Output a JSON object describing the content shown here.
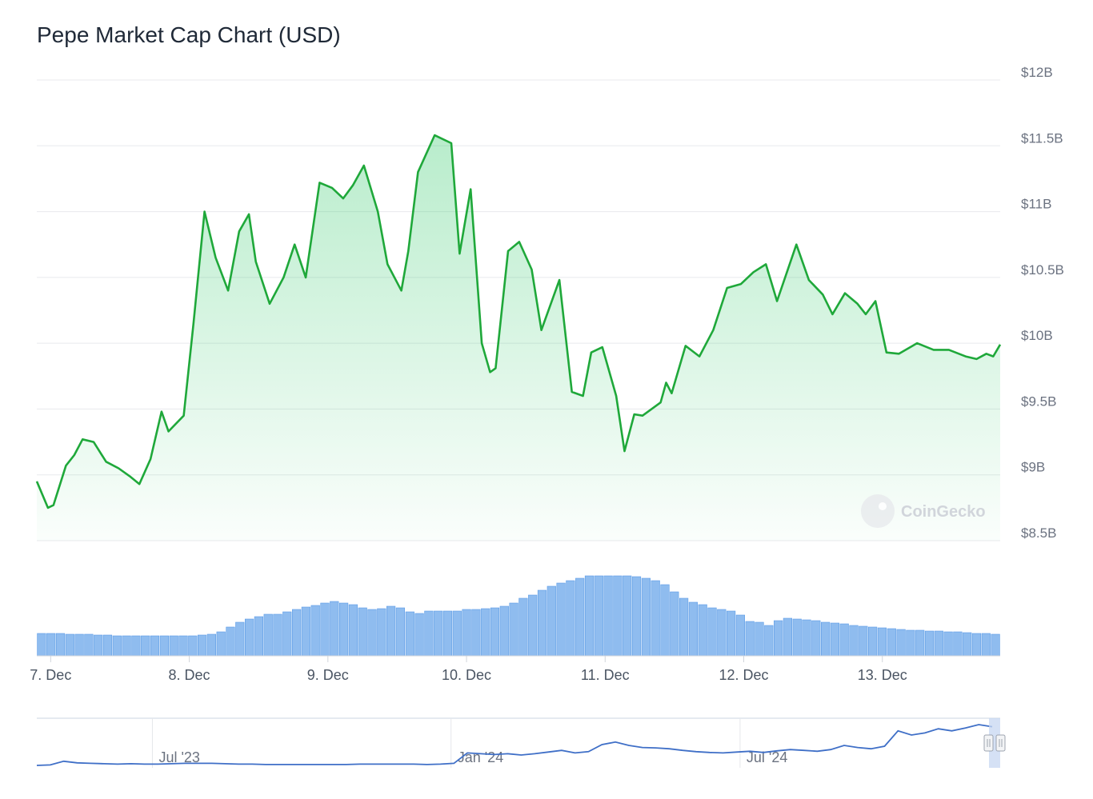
{
  "title": "Pepe Market Cap Chart (USD)",
  "watermark": "CoinGecko",
  "colors": {
    "line": "#1fa83a",
    "fill": "#22c55e",
    "volume": "#8fbcef",
    "volume_stroke": "#5b9be6",
    "navigator": "#3f6fc7"
  },
  "chart_data": [
    {
      "type": "area",
      "title": "Pepe Market Cap Chart (USD)",
      "ylim": [
        8.5,
        12
      ],
      "y_unit": "billion USD",
      "y_ticks": [
        "$8.5B",
        "$9B",
        "$9.5B",
        "$10B",
        "$10.5B",
        "$11B",
        "$11.5B",
        "$12B"
      ],
      "x_ticks": [
        "7. Dec",
        "8. Dec",
        "9. Dec",
        "10. Dec",
        "11. Dec",
        "12. Dec",
        "13. Dec"
      ],
      "xlim_days": [
        6.9,
        13.85
      ],
      "grid": true,
      "series": [
        {
          "x": [
            6.9,
            6.98,
            7.02,
            7.11,
            7.17,
            7.23,
            7.31,
            7.4,
            7.49,
            7.57,
            7.64,
            7.72,
            7.8,
            7.85,
            7.96,
            8.03,
            8.11,
            8.19,
            8.28,
            8.36,
            8.43,
            8.48,
            8.58,
            8.68,
            8.76,
            8.84,
            8.94,
            9.03,
            9.11,
            9.18,
            9.26,
            9.36,
            9.43,
            9.53,
            9.58,
            9.65,
            9.77,
            9.89,
            9.95,
            10.03,
            10.11,
            10.17,
            10.21,
            10.3,
            10.38,
            10.47,
            10.54,
            10.67,
            10.76,
            10.84,
            10.9,
            10.98,
            11.08,
            11.14,
            11.21,
            11.27,
            11.4,
            11.44,
            11.48,
            11.58,
            11.68,
            11.78,
            11.88,
            11.98,
            12.07,
            12.16,
            12.24,
            12.38,
            12.47,
            12.57,
            12.64,
            12.73,
            12.82,
            12.88,
            12.95,
            13.03,
            13.12,
            13.25,
            13.37,
            13.48,
            13.6,
            13.68,
            13.75,
            13.8,
            13.85
          ],
          "y": [
            8.95,
            8.75,
            8.77,
            9.07,
            9.15,
            9.27,
            9.25,
            9.1,
            9.05,
            8.99,
            8.93,
            9.12,
            9.48,
            9.33,
            9.45,
            10.15,
            11.0,
            10.65,
            10.4,
            10.85,
            10.98,
            10.62,
            10.3,
            10.5,
            10.75,
            10.5,
            11.22,
            11.18,
            11.1,
            11.2,
            11.35,
            11.0,
            10.6,
            10.4,
            10.7,
            11.3,
            11.58,
            11.52,
            10.68,
            11.17,
            10.0,
            9.78,
            9.81,
            10.7,
            10.77,
            10.56,
            10.1,
            10.48,
            9.63,
            9.6,
            9.93,
            9.97,
            9.6,
            9.18,
            9.46,
            9.45,
            9.55,
            9.7,
            9.62,
            9.98,
            9.9,
            10.1,
            10.42,
            10.45,
            10.54,
            10.6,
            10.32,
            10.75,
            10.48,
            10.37,
            10.22,
            10.38,
            10.3,
            10.22,
            10.32,
            9.93,
            9.92,
            10.0,
            9.95,
            9.95,
            9.9,
            9.88,
            9.92,
            9.9,
            9.99
          ]
        }
      ]
    },
    {
      "type": "bar",
      "name": "Volume",
      "x_day_range": [
        6.9,
        13.85
      ],
      "relative_values": [
        0.28,
        0.28,
        0.28,
        0.27,
        0.27,
        0.27,
        0.26,
        0.26,
        0.25,
        0.25,
        0.25,
        0.25,
        0.25,
        0.25,
        0.25,
        0.25,
        0.25,
        0.26,
        0.27,
        0.3,
        0.36,
        0.42,
        0.46,
        0.49,
        0.52,
        0.52,
        0.55,
        0.58,
        0.61,
        0.63,
        0.66,
        0.68,
        0.66,
        0.64,
        0.6,
        0.58,
        0.59,
        0.62,
        0.6,
        0.55,
        0.53,
        0.56,
        0.56,
        0.56,
        0.56,
        0.58,
        0.58,
        0.59,
        0.6,
        0.62,
        0.66,
        0.72,
        0.76,
        0.82,
        0.87,
        0.91,
        0.94,
        0.97,
        1.0,
        1.0,
        1.0,
        1.0,
        1.0,
        0.99,
        0.97,
        0.94,
        0.89,
        0.8,
        0.72,
        0.67,
        0.64,
        0.6,
        0.58,
        0.56,
        0.51,
        0.43,
        0.42,
        0.38,
        0.44,
        0.47,
        0.46,
        0.45,
        0.44,
        0.42,
        0.41,
        0.4,
        0.38,
        0.37,
        0.36,
        0.35,
        0.34,
        0.33,
        0.32,
        0.32,
        0.31,
        0.31,
        0.3,
        0.3,
        0.29,
        0.28,
        0.28,
        0.27
      ]
    },
    {
      "type": "line",
      "name": "Navigator",
      "x_ticks": [
        "Jul '23",
        "Jan '24",
        "Jul '24"
      ],
      "x_positions": [
        0.12,
        0.43,
        0.73
      ],
      "relative_values": [
        0.02,
        0.03,
        0.12,
        0.08,
        0.07,
        0.06,
        0.05,
        0.06,
        0.05,
        0.05,
        0.06,
        0.07,
        0.07,
        0.07,
        0.06,
        0.05,
        0.05,
        0.04,
        0.04,
        0.04,
        0.04,
        0.04,
        0.04,
        0.04,
        0.05,
        0.05,
        0.05,
        0.05,
        0.05,
        0.04,
        0.05,
        0.07,
        0.32,
        0.3,
        0.28,
        0.3,
        0.27,
        0.3,
        0.34,
        0.38,
        0.32,
        0.35,
        0.52,
        0.58,
        0.5,
        0.45,
        0.44,
        0.42,
        0.38,
        0.35,
        0.33,
        0.32,
        0.34,
        0.36,
        0.33,
        0.37,
        0.4,
        0.38,
        0.36,
        0.4,
        0.5,
        0.45,
        0.42,
        0.48,
        0.85,
        0.75,
        0.8,
        0.9,
        0.85,
        0.92,
        1.0,
        0.95
      ]
    }
  ]
}
